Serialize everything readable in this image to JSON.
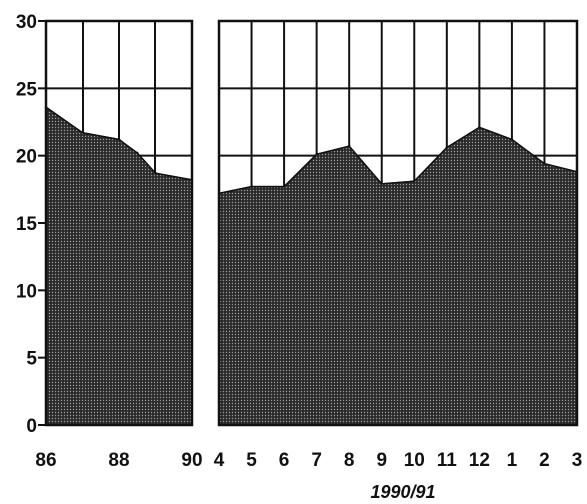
{
  "chart_data": {
    "type": "area",
    "ylim": [
      0,
      30
    ],
    "yticks": [
      "0",
      "5",
      "10",
      "15",
      "20",
      "25",
      "30"
    ],
    "grid": true,
    "panels": [
      {
        "name": "annual",
        "xlabel": "",
        "x": [
          86,
          87,
          88,
          88.5,
          89,
          90
        ],
        "xticks": [
          "86",
          "88",
          "90"
        ],
        "values": [
          23.6,
          21.7,
          21.2,
          20.2,
          18.7,
          18.2
        ]
      },
      {
        "name": "monthly",
        "xlabel": "1990/91",
        "x": [
          "4",
          "5",
          "6",
          "7",
          "8",
          "9",
          "10",
          "11",
          "12",
          "1",
          "2",
          "3"
        ],
        "xticks": [
          "4",
          "5",
          "6",
          "7",
          "8",
          "9",
          "10",
          "11",
          "12",
          "1",
          "2",
          "3"
        ],
        "values": [
          17.2,
          17.7,
          17.7,
          20.1,
          20.7,
          17.9,
          18.1,
          20.6,
          22.1,
          21.2,
          19.4,
          18.8
        ]
      }
    ]
  }
}
